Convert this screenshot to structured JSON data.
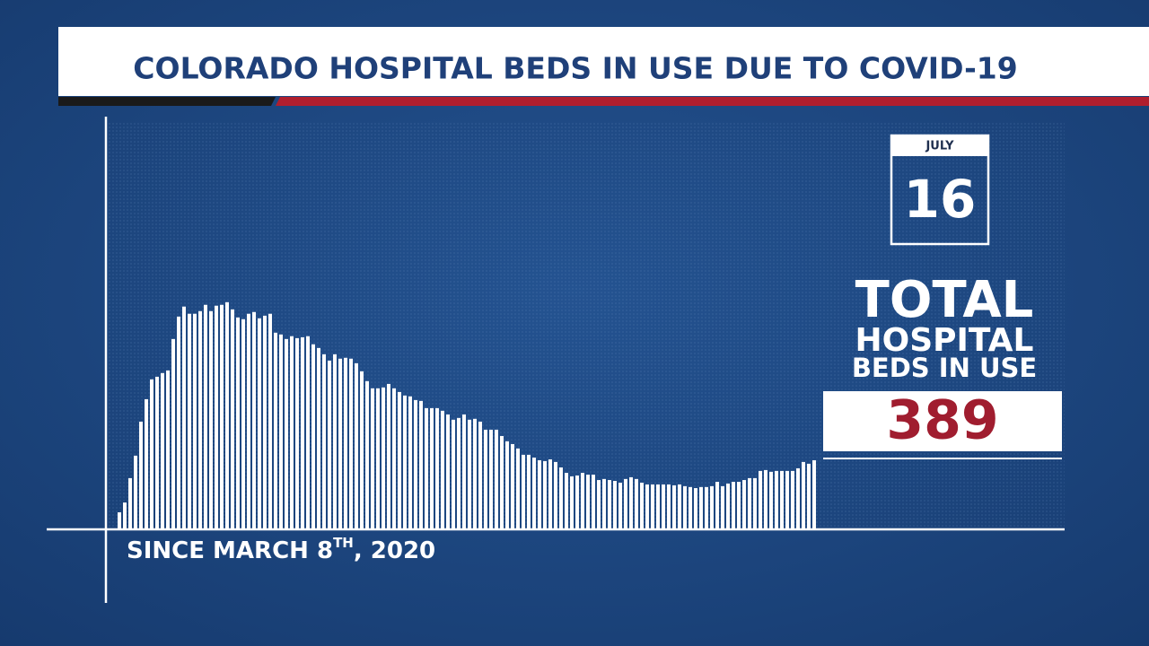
{
  "chart_data": {
    "type": "bar",
    "title": "COLORADO HOSPITAL BEDS IN USE DUE TO COVID-19",
    "date": {
      "month": "JULY",
      "day": "16"
    },
    "callout": [
      "TOTAL",
      "HOSPITAL",
      "BEDS IN USE"
    ],
    "x_label": {
      "text": "SINCE MARCH 8",
      "superscript": "TH",
      "suffix": ", 2020"
    },
    "color": "#ffffff",
    "ylim": [
      0,
      2000
    ],
    "values": [
      92,
      148,
      287,
      415,
      609,
      737,
      850,
      865,
      886,
      901,
      1080,
      1208,
      1265,
      1224,
      1224,
      1239,
      1275,
      1239,
      1270,
      1275,
      1290,
      1249,
      1203,
      1193,
      1224,
      1234,
      1198,
      1213,
      1224,
      1116,
      1106,
      1080,
      1096,
      1085,
      1090,
      1096,
      1050,
      1029,
      993,
      957,
      993,
      968,
      973,
      968,
      942,
      896,
      840,
      799,
      799,
      804,
      824,
      799,
      778,
      758,
      753,
      732,
      727,
      686,
      686,
      686,
      671,
      650,
      620,
      630,
      650,
      620,
      625,
      609,
      563,
      563,
      563,
      527,
      497,
      481,
      456,
      420,
      420,
      404,
      389,
      384,
      394,
      379,
      348,
      317,
      297,
      302,
      317,
      307,
      307,
      276,
      282,
      276,
      271,
      261,
      282,
      292,
      282,
      261,
      251,
      251,
      251,
      251,
      251,
      246,
      251,
      241,
      236,
      230,
      236,
      236,
      241,
      266,
      241,
      256,
      266,
      266,
      276,
      287,
      287,
      328,
      333,
      323,
      328,
      328,
      328,
      328,
      343,
      379,
      369,
      389
    ]
  }
}
